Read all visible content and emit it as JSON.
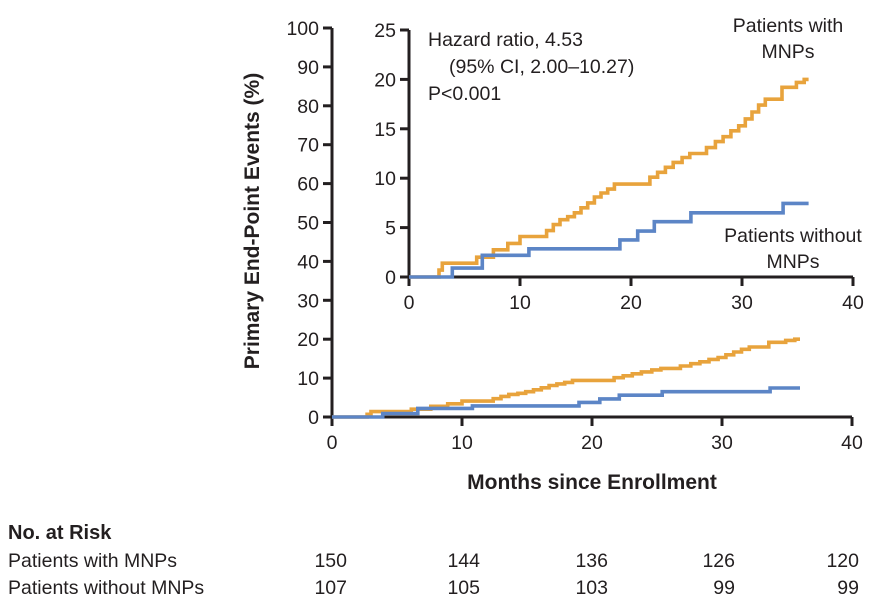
{
  "figure": {
    "background": "#FFFFFF",
    "text_color": "#231F20"
  },
  "chart_data": {
    "type": "line",
    "subtype": "kaplan-meier-step",
    "xlabel": "Months since Enrollment",
    "ylabel": "Primary End-Point Events (%)",
    "grid": false,
    "main_axis": {
      "xlim": [
        0,
        40
      ],
      "ylim": [
        0,
        100
      ],
      "xticks": [
        0,
        10,
        20,
        30,
        40
      ],
      "yticks": [
        0,
        10,
        20,
        30,
        40,
        50,
        60,
        70,
        80,
        90,
        100
      ]
    },
    "inset_axis": {
      "xlim": [
        0,
        40
      ],
      "ylim": [
        0,
        25
      ],
      "xticks": [
        0,
        10,
        20,
        30,
        40
      ],
      "yticks": [
        0,
        5,
        10,
        15,
        20,
        25
      ]
    },
    "annotation": {
      "line1": "Hazard ratio, 4.53",
      "line2": "(95% CI, 2.00–10.27)",
      "line3": "P<0.001"
    },
    "series": [
      {
        "name": "Patients with MNPs",
        "label_lines": [
          "Patients with",
          "MNPs"
        ],
        "color": "#E8A33C",
        "points": [
          [
            0,
            0
          ],
          [
            2.7,
            0.7
          ],
          [
            3.0,
            1.4
          ],
          [
            6.1,
            2.0
          ],
          [
            7.6,
            2.75
          ],
          [
            8.9,
            3.4
          ],
          [
            10.0,
            4.1
          ],
          [
            12.4,
            4.7
          ],
          [
            13.0,
            5.3
          ],
          [
            13.6,
            5.8
          ],
          [
            14.3,
            6.1
          ],
          [
            14.9,
            6.5
          ],
          [
            15.5,
            7.0
          ],
          [
            16.1,
            7.5
          ],
          [
            16.7,
            8.1
          ],
          [
            17.3,
            8.5
          ],
          [
            17.9,
            8.9
          ],
          [
            18.5,
            9.4
          ],
          [
            21.7,
            10.1
          ],
          [
            22.4,
            10.6
          ],
          [
            23.1,
            11.1
          ],
          [
            23.8,
            11.6
          ],
          [
            24.6,
            12.1
          ],
          [
            25.3,
            12.5
          ],
          [
            26.8,
            13.1
          ],
          [
            27.6,
            13.7
          ],
          [
            28.3,
            14.2
          ],
          [
            29.0,
            14.8
          ],
          [
            29.7,
            15.3
          ],
          [
            30.3,
            16.0
          ],
          [
            30.9,
            16.7
          ],
          [
            31.5,
            17.4
          ],
          [
            32.1,
            18.0
          ],
          [
            33.6,
            19.2
          ],
          [
            34.9,
            19.7
          ],
          [
            35.6,
            20.0
          ],
          [
            36.0,
            20.0
          ]
        ]
      },
      {
        "name": "Patients without MNPs",
        "label_lines": [
          "Patients without",
          "MNPs"
        ],
        "color": "#5C85C6",
        "points": [
          [
            0,
            0
          ],
          [
            3.9,
            0.9
          ],
          [
            6.6,
            2.2
          ],
          [
            10.8,
            2.85
          ],
          [
            19.0,
            3.75
          ],
          [
            20.6,
            4.65
          ],
          [
            22.1,
            5.6
          ],
          [
            25.4,
            6.5
          ],
          [
            33.7,
            7.45
          ],
          [
            36.0,
            7.45
          ]
        ]
      }
    ]
  },
  "risk_table": {
    "title": "No. at Risk",
    "rows": [
      {
        "label": "Patients with MNPs",
        "counts": [
          "150",
          "144",
          "136",
          "126",
          "120"
        ]
      },
      {
        "label": "Patients without MNPs",
        "counts": [
          "107",
          "105",
          "103",
          "99",
          "99"
        ]
      }
    ]
  }
}
